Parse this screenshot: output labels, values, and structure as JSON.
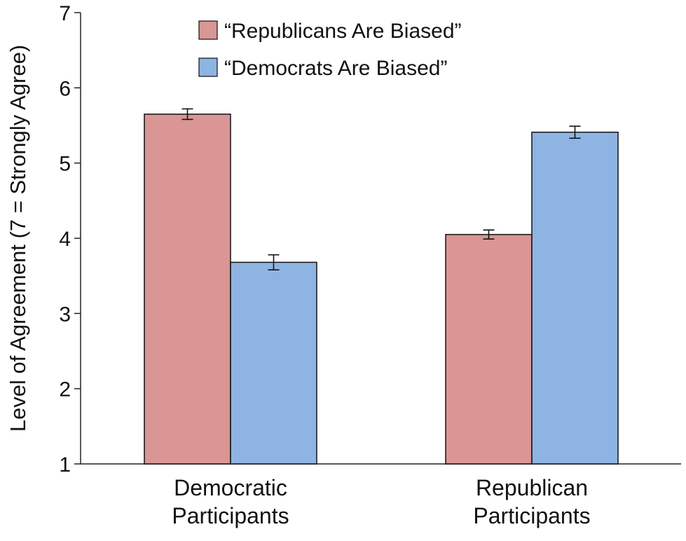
{
  "chart_data": {
    "type": "bar",
    "title": "",
    "xlabel": "",
    "ylabel": "Level of Agreement  (7 = Strongly Agree)",
    "ylim": [
      1,
      7
    ],
    "yticks": [
      1,
      2,
      3,
      4,
      5,
      6,
      7
    ],
    "categories": [
      [
        "Democratic",
        "Participants"
      ],
      [
        "Republican",
        "Participants"
      ]
    ],
    "series": [
      {
        "name": "“Republicans Are Biased”",
        "color": "#d99694",
        "values": [
          5.65,
          4.05
        ],
        "errors": [
          0.07,
          0.06
        ]
      },
      {
        "name": "“Democrats Are Biased”",
        "color": "#8eb4e3",
        "values": [
          3.68,
          5.41
        ],
        "errors": [
          0.1,
          0.08
        ]
      }
    ],
    "grid": false,
    "legend_position": "top-center"
  }
}
